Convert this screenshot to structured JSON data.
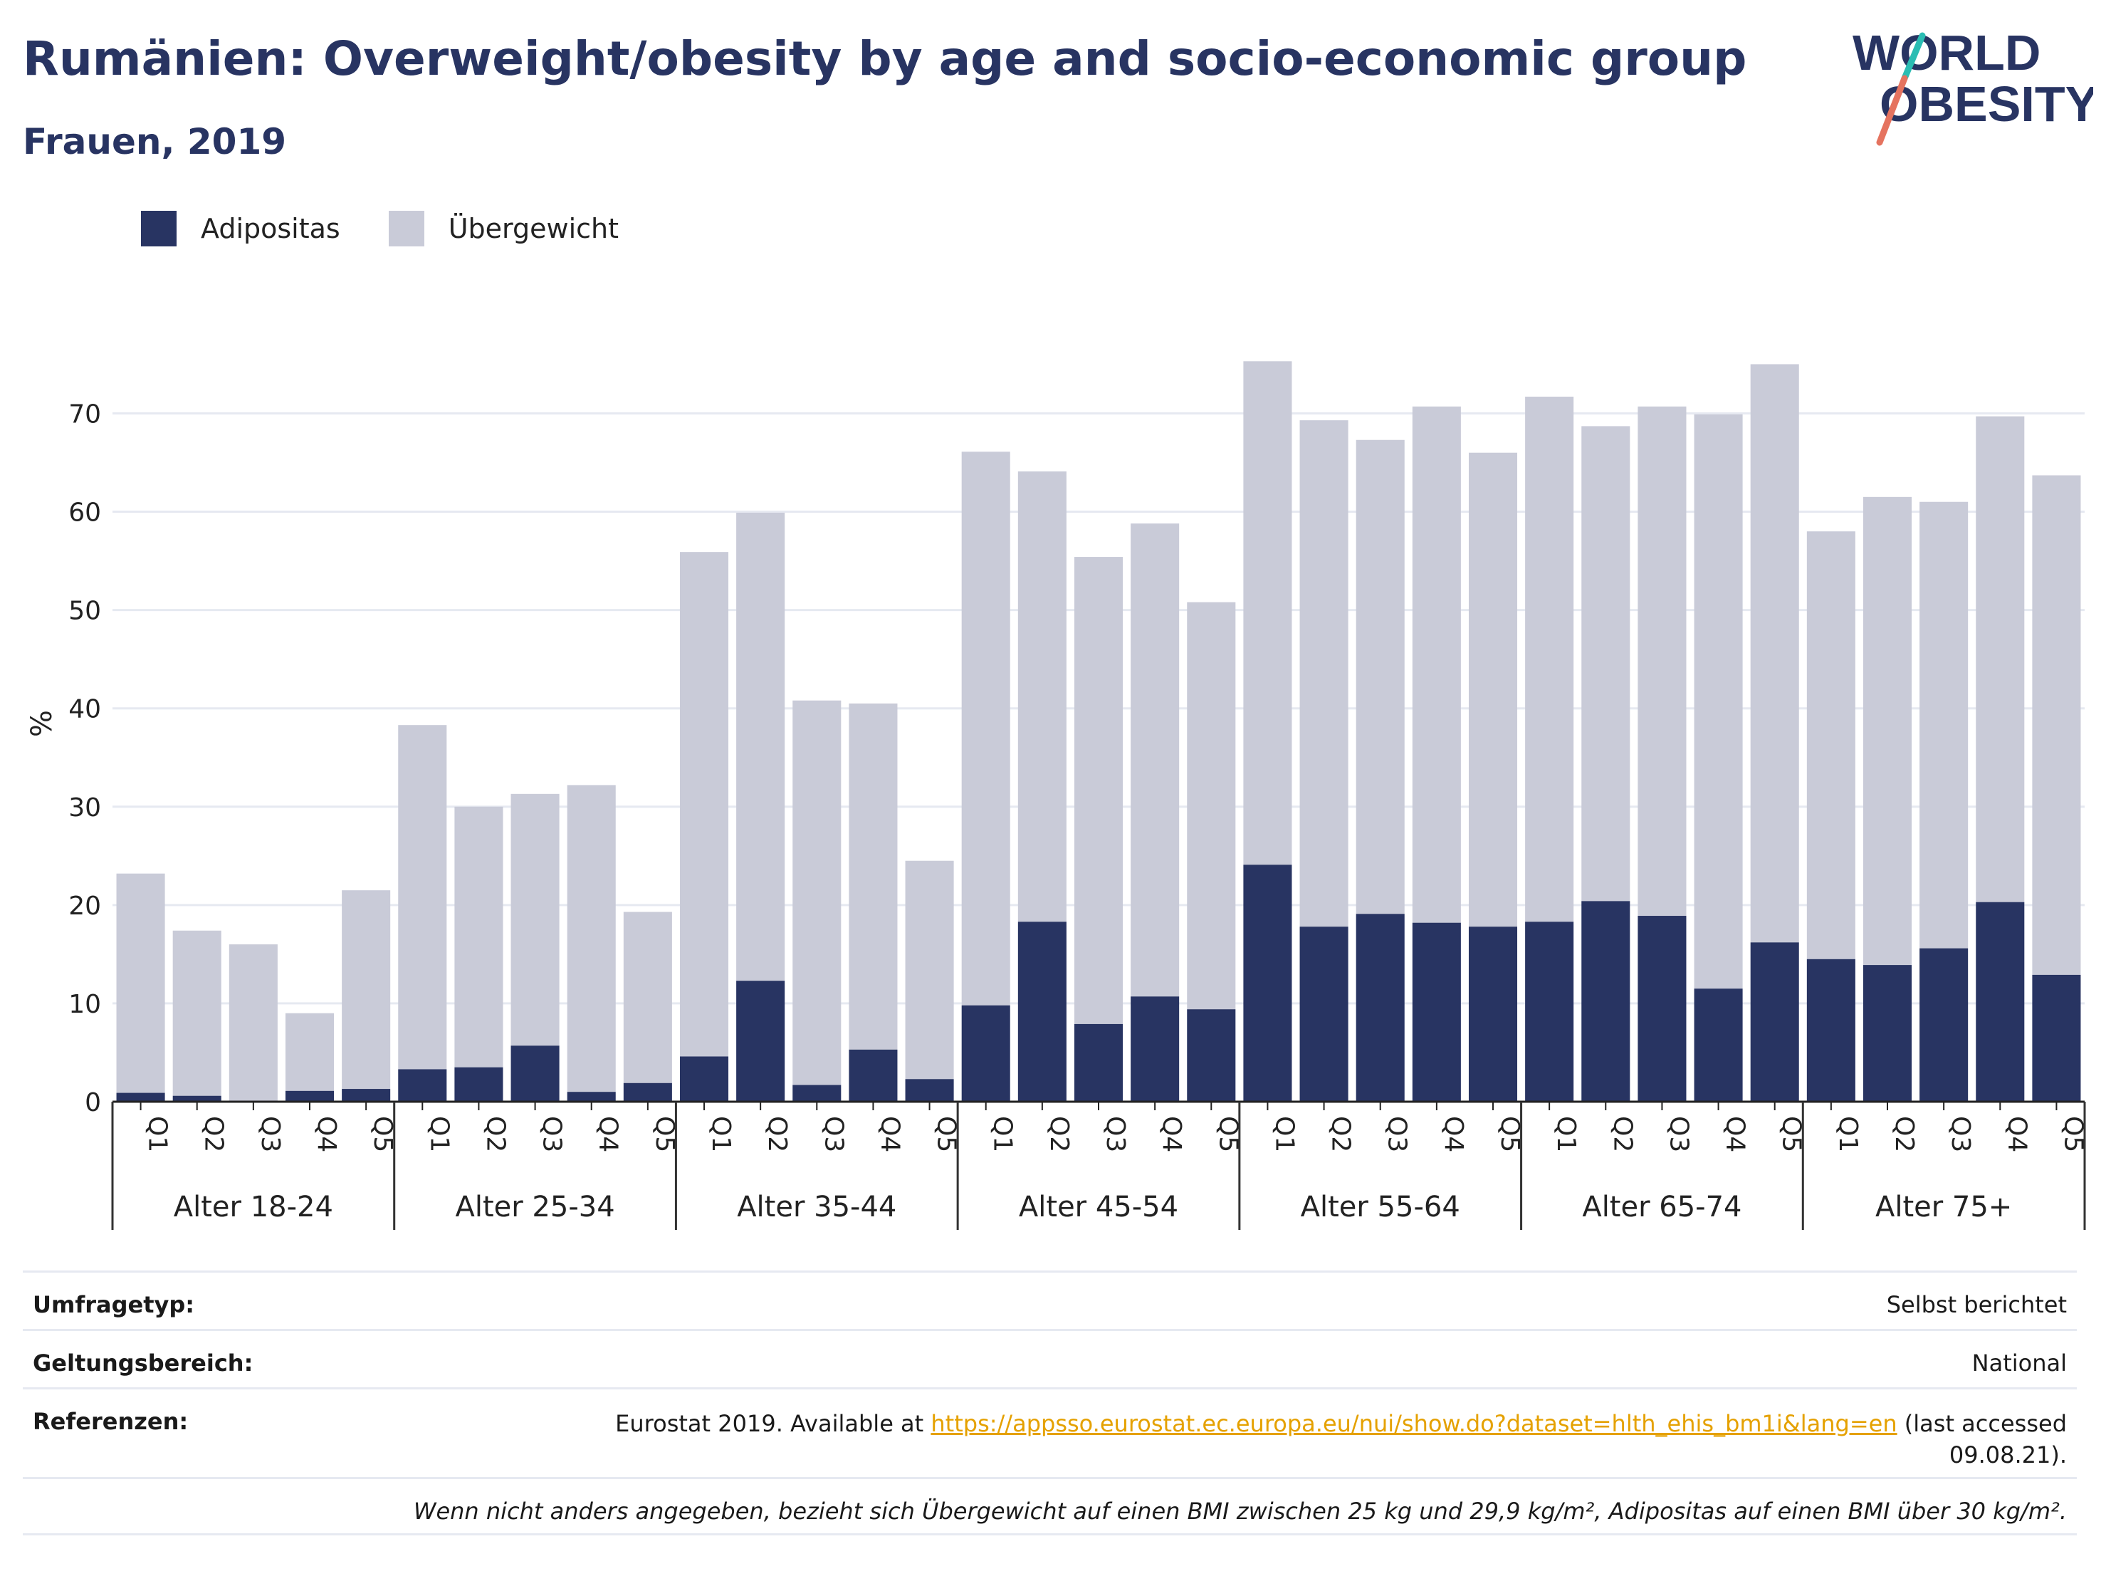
{
  "title": "Rumänien: Overweight/obesity by age and socio-economic group",
  "subtitle": "Frauen, 2019",
  "logo": {
    "line1": "WORLD",
    "line2": "OBESITY"
  },
  "legend": {
    "obesity": "Adipositas",
    "overweight": "Übergewicht"
  },
  "colors": {
    "obesity": "#283462",
    "overweight": "#c9cbd8",
    "accent_teal": "#2bbdb3",
    "accent_red": "#e5735f",
    "grid": "#e6e9f1"
  },
  "chart_data": {
    "type": "bar",
    "stacked": true,
    "ylabel": "%",
    "xlabel": "",
    "ylim": [
      0,
      78
    ],
    "yticks": [
      0,
      10,
      20,
      30,
      40,
      50,
      60,
      70
    ],
    "grid": true,
    "legend_position": "top-left",
    "groups": [
      "Alter 18-24",
      "Alter 25-34",
      "Alter 35-44",
      "Alter 45-54",
      "Alter 55-64",
      "Alter 65-74",
      "Alter 75+"
    ],
    "sub_categories": [
      "Q1",
      "Q2",
      "Q3",
      "Q4",
      "Q5"
    ],
    "series": [
      {
        "name": "Adipositas",
        "values": [
          0.9,
          0.6,
          0.0,
          1.1,
          1.3,
          3.3,
          3.5,
          5.7,
          1.0,
          1.9,
          4.6,
          12.3,
          1.7,
          5.3,
          2.3,
          9.8,
          18.3,
          7.9,
          10.7,
          9.4,
          24.1,
          17.8,
          19.1,
          18.2,
          17.8,
          18.3,
          20.4,
          18.9,
          11.5,
          16.2,
          14.5,
          13.9,
          15.6,
          20.3,
          12.9
        ]
      },
      {
        "name": "Übergewicht",
        "values": [
          22.3,
          16.8,
          16.0,
          7.9,
          20.2,
          35.0,
          26.5,
          25.6,
          31.2,
          17.4,
          51.3,
          47.6,
          39.1,
          35.2,
          22.2,
          56.3,
          45.8,
          47.5,
          48.1,
          41.4,
          51.2,
          51.5,
          48.2,
          52.5,
          48.2,
          53.4,
          48.3,
          51.8,
          58.4,
          58.8,
          43.5,
          47.6,
          45.4,
          49.4,
          50.8
        ]
      }
    ]
  },
  "info": {
    "survey_label": "Umfragetyp:",
    "survey_value": "Selbst berichtet",
    "scope_label": "Geltungsbereich:",
    "scope_value": "National",
    "ref_label": "Referenzen:",
    "ref_prefix": "Eurostat 2019. Available at ",
    "ref_link": "https://appsso.eurostat.ec.europa.eu/nui/show.do?dataset=hlth_ehis_bm1i&lang=en",
    "ref_suffix": " (last accessed",
    "ref_date": "09.08.21).",
    "note": "Wenn nicht anders angegeben, bezieht sich Übergewicht auf einen BMI zwischen 25 kg und 29,9 kg/m², Adipositas auf einen BMI über 30 kg/m²."
  }
}
